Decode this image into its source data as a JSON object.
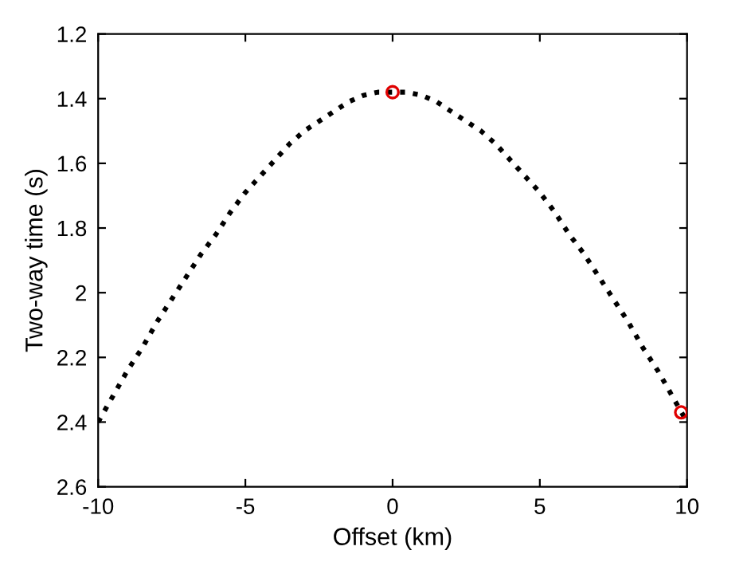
{
  "chart_data": {
    "type": "line",
    "xlabel": "Offset (km)",
    "ylabel": "Two-way time (s)",
    "xlim": [
      -10,
      10
    ],
    "xticks": [
      -10,
      -5,
      0,
      5,
      10
    ],
    "ylim": [
      2.6,
      1.2
    ],
    "yticks": [
      1.2,
      1.4,
      1.6,
      1.8,
      2,
      2.2,
      2.4,
      2.6
    ],
    "grid": false,
    "legend": false,
    "series": [
      {
        "color": "#000000",
        "line_style": "dotted",
        "marker": "none",
        "x": [
          -10,
          -9.5,
          -9,
          -8.5,
          -8,
          -7.5,
          -7,
          -6.5,
          -6,
          -5.5,
          -5,
          -4.5,
          -4,
          -3.5,
          -3,
          -2.5,
          -2,
          -1.5,
          -1,
          -0.5,
          0,
          0.5,
          1,
          1.5,
          2,
          2.5,
          3,
          3.5,
          4,
          4.5,
          5,
          5.5,
          6,
          6.5,
          7,
          7.5,
          8,
          8.5,
          9,
          9.5,
          10
        ],
        "values": [
          2.4,
          2.32,
          2.24,
          2.17,
          2.09,
          2.02,
          1.95,
          1.88,
          1.82,
          1.75,
          1.69,
          1.64,
          1.59,
          1.54,
          1.5,
          1.47,
          1.44,
          1.41,
          1.39,
          1.38,
          1.38,
          1.38,
          1.39,
          1.41,
          1.44,
          1.47,
          1.5,
          1.54,
          1.59,
          1.64,
          1.69,
          1.75,
          1.82,
          1.88,
          1.95,
          2.02,
          2.09,
          2.17,
          2.24,
          2.32,
          2.4
        ]
      },
      {
        "type": "scatter",
        "color": "#e00000",
        "marker": "circle",
        "x": [
          0,
          9.8
        ],
        "values": [
          1.38,
          2.37
        ]
      }
    ]
  }
}
